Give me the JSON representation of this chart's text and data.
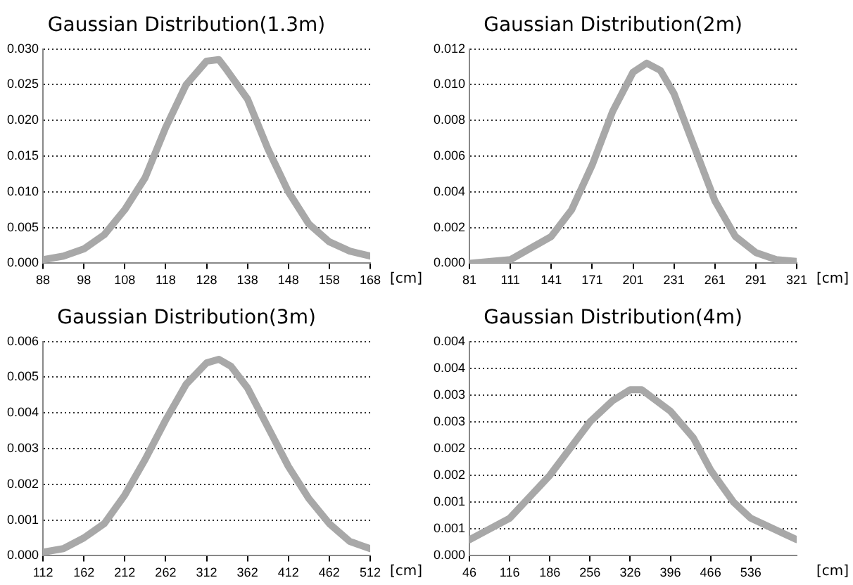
{
  "chart_data": [
    {
      "type": "line",
      "title": "Gaussian Distribution(1.3m)",
      "xlabel": "[cm]",
      "grid": "y",
      "legend": false,
      "marker": "none",
      "line_style": "solid",
      "xlim": [
        88,
        168
      ],
      "xticks": [
        88,
        98,
        108,
        118,
        128,
        138,
        148,
        158,
        168
      ],
      "ylim": [
        0,
        0.03
      ],
      "yticks": [
        {
          "value": 0,
          "label": "0.000"
        },
        {
          "value": 0.005,
          "label": "0.005"
        },
        {
          "value": 0.01,
          "label": "0.010"
        },
        {
          "value": 0.015,
          "label": "0.015"
        },
        {
          "value": 0.02,
          "label": "0.020"
        },
        {
          "value": 0.025,
          "label": "0.025"
        },
        {
          "value": 0.03,
          "label": "0.030"
        }
      ],
      "series": [
        {
          "color": "#a8a8a8",
          "x": [
            88,
            93,
            98,
            103,
            108,
            113,
            118,
            123,
            128,
            131,
            133,
            138,
            143,
            148,
            153,
            158,
            163,
            168
          ],
          "values": [
            0.0005,
            0.001,
            0.002,
            0.004,
            0.0075,
            0.012,
            0.019,
            0.025,
            0.0283,
            0.0285,
            0.027,
            0.023,
            0.016,
            0.01,
            0.0055,
            0.003,
            0.0017,
            0.001
          ]
        }
      ]
    },
    {
      "type": "line",
      "title": "Gaussian Distribution(2m)",
      "xlabel": "[cm]",
      "grid": "y",
      "legend": false,
      "marker": "none",
      "line_style": "solid",
      "xlim": [
        81,
        321
      ],
      "xticks": [
        81,
        111,
        141,
        171,
        201,
        231,
        261,
        291,
        321
      ],
      "ylim": [
        0,
        0.012
      ],
      "yticks": [
        {
          "value": 0,
          "label": "0.000"
        },
        {
          "value": 0.002,
          "label": "0.002"
        },
        {
          "value": 0.004,
          "label": "0.004"
        },
        {
          "value": 0.006,
          "label": "0.006"
        },
        {
          "value": 0.008,
          "label": "0.008"
        },
        {
          "value": 0.01,
          "label": "0.010"
        },
        {
          "value": 0.012,
          "label": "0.012"
        }
      ],
      "series": [
        {
          "color": "#a8a8a8",
          "x": [
            81,
            111,
            141,
            156,
            171,
            186,
            201,
            211,
            221,
            231,
            246,
            261,
            276,
            291,
            306,
            321
          ],
          "values": [
            0,
            0.0002,
            0.0015,
            0.003,
            0.0055,
            0.0085,
            0.0107,
            0.0112,
            0.0108,
            0.0095,
            0.0065,
            0.0035,
            0.0015,
            0.0006,
            0.0002,
            0.0001
          ]
        }
      ]
    },
    {
      "type": "line",
      "title": "Gaussian Distribution(3m)",
      "xlabel": "[cm]",
      "grid": "y",
      "legend": false,
      "marker": "none",
      "line_style": "solid",
      "xlim": [
        112,
        512
      ],
      "xticks": [
        112,
        162,
        212,
        262,
        312,
        362,
        412,
        462,
        512
      ],
      "ylim": [
        0,
        0.006
      ],
      "yticks": [
        {
          "value": 0,
          "label": "0.000"
        },
        {
          "value": 0.001,
          "label": "0.001"
        },
        {
          "value": 0.002,
          "label": "0.002"
        },
        {
          "value": 0.003,
          "label": "0.003"
        },
        {
          "value": 0.004,
          "label": "0.004"
        },
        {
          "value": 0.005,
          "label": "0.005"
        },
        {
          "value": 0.006,
          "label": "0.006"
        }
      ],
      "series": [
        {
          "color": "#a8a8a8",
          "x": [
            112,
            137,
            162,
            187,
            212,
            237,
            262,
            287,
            312,
            327,
            342,
            362,
            387,
            412,
            437,
            462,
            487,
            512
          ],
          "values": [
            0.0001,
            0.0002,
            0.0005,
            0.0009,
            0.0017,
            0.0027,
            0.0038,
            0.0048,
            0.0054,
            0.0055,
            0.0053,
            0.0047,
            0.0036,
            0.0025,
            0.0016,
            0.0009,
            0.0004,
            0.0002
          ]
        }
      ]
    },
    {
      "type": "line",
      "title": "Gaussian Distribution(4m)",
      "xlabel": "[cm]",
      "grid": "y",
      "legend": false,
      "marker": "none",
      "line_style": "solid",
      "xlim": [
        46,
        616
      ],
      "xticks": [
        46,
        116,
        186,
        256,
        326,
        396,
        466,
        536
      ],
      "ylim": [
        0,
        0.004
      ],
      "yticks": [
        {
          "value": 0,
          "label": "0.000"
        },
        {
          "value": 0.0005,
          "label": "0.001"
        },
        {
          "value": 0.001,
          "label": "0.001"
        },
        {
          "value": 0.0015,
          "label": "0.002"
        },
        {
          "value": 0.002,
          "label": "0.002"
        },
        {
          "value": 0.0025,
          "label": "0.003"
        },
        {
          "value": 0.003,
          "label": "0.003"
        },
        {
          "value": 0.0035,
          "label": "0.004"
        },
        {
          "value": 0.004,
          "label": "0.004"
        }
      ],
      "series": [
        {
          "color": "#a8a8a8",
          "x": [
            46,
            116,
            186,
            256,
            296,
            326,
            346,
            396,
            436,
            466,
            506,
            536,
            576,
            616
          ],
          "values": [
            0.0003,
            0.0007,
            0.0015,
            0.0025,
            0.0029,
            0.0031,
            0.0031,
            0.0027,
            0.0022,
            0.0016,
            0.001,
            0.0007,
            0.0005,
            0.0003
          ]
        }
      ]
    }
  ]
}
